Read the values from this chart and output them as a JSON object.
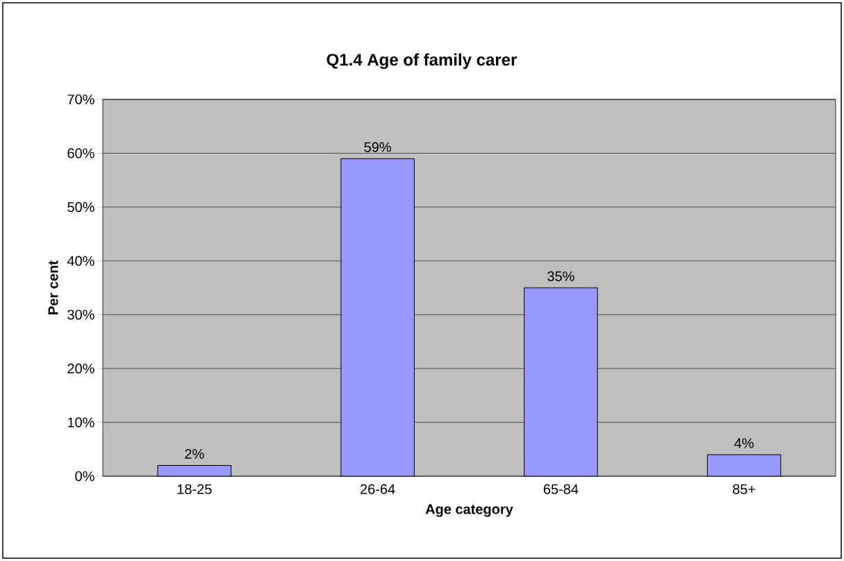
{
  "chart_data": {
    "type": "bar",
    "title": "Q1.4 Age of family carer",
    "xlabel": "Age category",
    "ylabel": "Per cent",
    "categories": [
      "18-25",
      "26-64",
      "65-84",
      "85+"
    ],
    "values": [
      2,
      59,
      35,
      4
    ],
    "color": "#9999ff",
    "value_labels": [
      "2%",
      "59%",
      "35%",
      "4%"
    ],
    "ylim": [
      0,
      70
    ],
    "yticks": [
      {
        "value": 0,
        "label": "0%"
      },
      {
        "value": 10,
        "label": "10%"
      },
      {
        "value": 20,
        "label": "20%"
      },
      {
        "value": 30,
        "label": "30%"
      },
      {
        "value": 40,
        "label": "40%"
      },
      {
        "value": 50,
        "label": "50%"
      },
      {
        "value": 60,
        "label": "60%"
      },
      {
        "value": 70,
        "label": "70%"
      }
    ],
    "grid": "y"
  }
}
